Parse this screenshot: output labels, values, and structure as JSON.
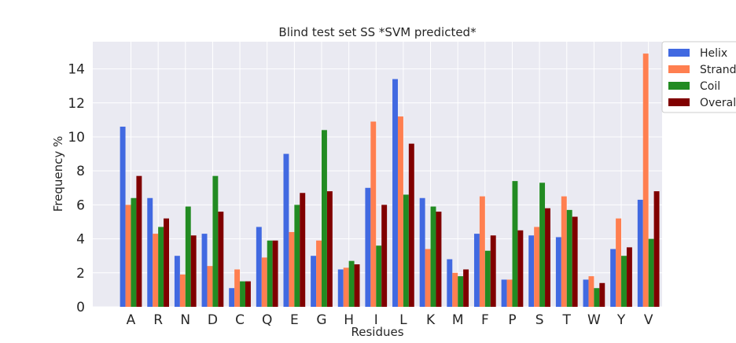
{
  "chart_data": {
    "type": "bar",
    "title": "Blind test set SS *SVM predicted*",
    "xlabel": "Residues",
    "ylabel": "Frequency %",
    "ylim": [
      0,
      15.6
    ],
    "yticks": [
      0,
      2,
      4,
      6,
      8,
      10,
      12,
      14
    ],
    "grid": true,
    "legend_position": "top-right, outside plot",
    "categories": [
      "A",
      "R",
      "N",
      "D",
      "C",
      "Q",
      "E",
      "G",
      "H",
      "I",
      "L",
      "K",
      "M",
      "F",
      "P",
      "S",
      "T",
      "W",
      "Y",
      "V"
    ],
    "series": [
      {
        "name": "Helix",
        "color": "#4169E1",
        "values": [
          10.6,
          6.4,
          3.0,
          4.3,
          1.1,
          4.7,
          9.0,
          3.0,
          2.2,
          7.0,
          13.4,
          6.4,
          2.8,
          4.3,
          1.6,
          4.2,
          4.1,
          1.6,
          3.4,
          6.3
        ]
      },
      {
        "name": "Strand",
        "color": "#FF7F50",
        "values": [
          6.0,
          4.3,
          1.9,
          2.4,
          2.2,
          2.9,
          4.4,
          3.9,
          2.3,
          10.9,
          11.2,
          3.4,
          2.0,
          6.5,
          1.6,
          4.7,
          6.5,
          1.8,
          5.2,
          14.9
        ]
      },
      {
        "name": "Coil",
        "color": "#228B22",
        "values": [
          6.4,
          4.7,
          5.9,
          7.7,
          1.5,
          3.9,
          6.0,
          10.4,
          2.7,
          3.6,
          6.6,
          5.9,
          1.8,
          3.3,
          7.4,
          7.3,
          5.7,
          1.1,
          3.0,
          4.0
        ]
      },
      {
        "name": "Overall",
        "color": "#800000",
        "values": [
          7.7,
          5.2,
          4.2,
          5.6,
          1.5,
          3.9,
          6.7,
          6.8,
          2.5,
          6.0,
          9.6,
          5.6,
          2.2,
          4.2,
          4.5,
          5.8,
          5.3,
          1.4,
          3.5,
          6.8
        ]
      }
    ]
  }
}
